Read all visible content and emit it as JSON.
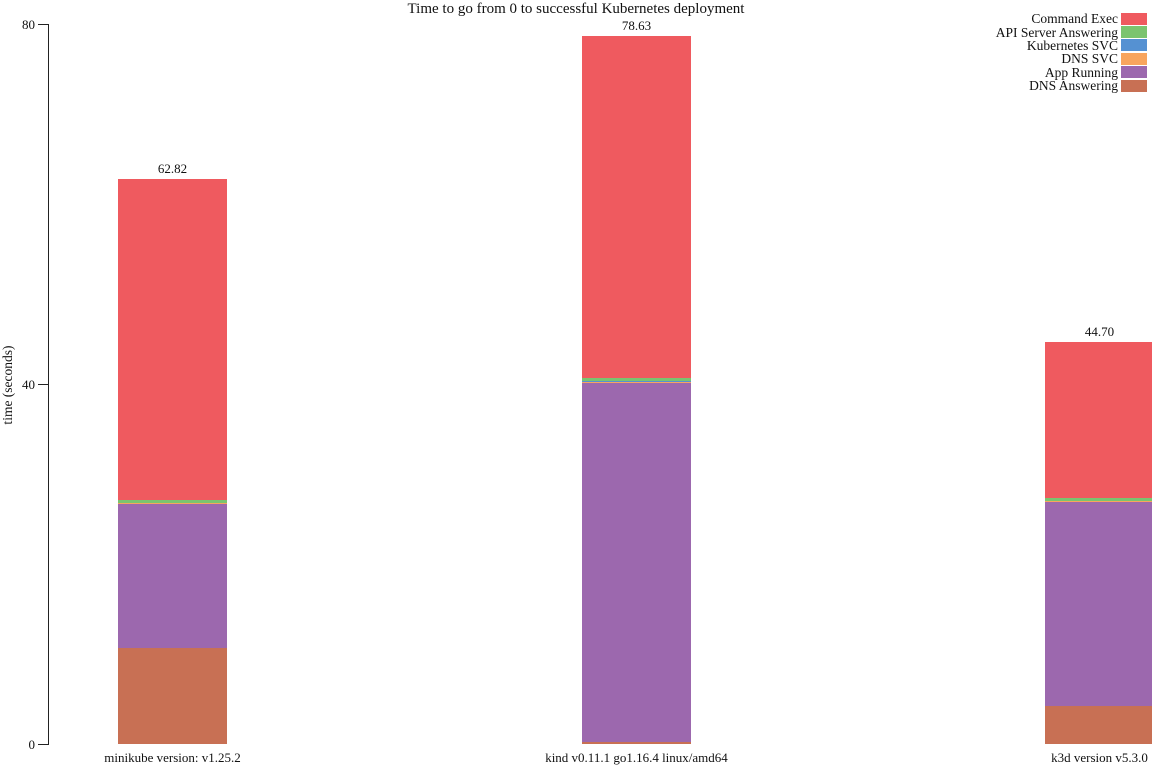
{
  "chart_data": {
    "type": "bar",
    "stacked": true,
    "title": "Time to go from 0 to successful Kubernetes deployment",
    "ylabel": "time (seconds)",
    "xlabel": "",
    "ylim": [
      0,
      80
    ],
    "yticks": [
      0,
      40,
      80
    ],
    "grid": false,
    "legend_position": "top-right",
    "categories": [
      "minikube version: v1.25.2",
      "kind v0.11.1 go1.16.4 linux/amd64",
      "k3d version v5.3.0"
    ],
    "totals": [
      "62.82",
      "78.63",
      "44.70"
    ],
    "stack_order_bottom_to_top": [
      "DNS Answering",
      "App Running",
      "DNS SVC",
      "Kubernetes SVC",
      "API Server Answering",
      "Command Exec"
    ],
    "series": [
      {
        "name": "Command Exec",
        "color": "#ef5a5f",
        "values": [
          35.7,
          38.0,
          17.35
        ]
      },
      {
        "name": "API Server Answering",
        "color": "#7bc46f",
        "values": [
          0.3,
          0.33,
          0.3
        ]
      },
      {
        "name": "Kubernetes SVC",
        "color": "#5591d2",
        "values": [
          0.1,
          0.1,
          0.1
        ]
      },
      {
        "name": "DNS SVC",
        "color": "#f8a55e",
        "values": [
          0.05,
          0.05,
          0.05
        ]
      },
      {
        "name": "App Running",
        "color": "#9c68ae",
        "values": [
          16.0,
          39.9,
          22.7
        ]
      },
      {
        "name": "DNS Answering",
        "color": "#c87054",
        "values": [
          10.67,
          0.25,
          4.2
        ]
      }
    ]
  }
}
